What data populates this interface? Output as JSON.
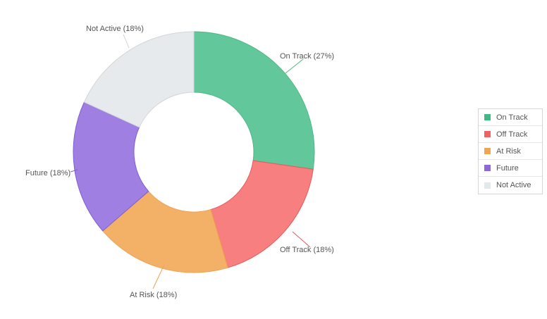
{
  "chart_data": {
    "type": "pie",
    "subtype": "donut",
    "categories": [
      "On Track",
      "Off Track",
      "At Risk",
      "Future",
      "Not Active"
    ],
    "values": [
      27,
      18,
      18,
      18,
      18
    ],
    "slice_labels": [
      "On Track (27%)",
      "Off Track (18%)",
      "At Risk (18%)",
      "Future (18%)",
      "Not Active (18%)"
    ],
    "colors": [
      "#62c89b",
      "#f77f7f",
      "#f3b168",
      "#a07fe3",
      "#e6eaec"
    ],
    "stroke_colors": [
      "#4fb886",
      "#e55a5a",
      "#eea24f",
      "#7d5fd1",
      "#cfd6da"
    ],
    "legend_position": "right",
    "title": "",
    "xlabel": "",
    "ylabel": ""
  },
  "legend": {
    "items": [
      {
        "label": "On Track",
        "color": "#3fba84"
      },
      {
        "label": "Off Track",
        "color": "#f06060"
      },
      {
        "label": "At Risk",
        "color": "#f0a550"
      },
      {
        "label": "Future",
        "color": "#8c66dd"
      },
      {
        "label": "Not Active",
        "color": "#e3e8ea"
      }
    ]
  }
}
